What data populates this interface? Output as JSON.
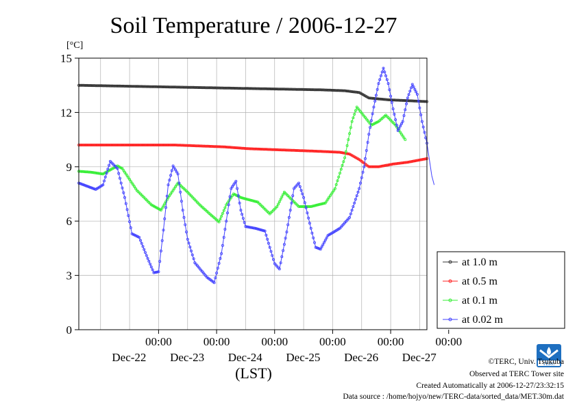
{
  "chart_data": {
    "type": "line",
    "title": "Soil Temperature / 2006-12-27",
    "ylabel": "[°C]",
    "xlabel": "(LST)",
    "ylim": [
      0,
      15
    ],
    "yticks": [
      0,
      3,
      6,
      9,
      12,
      15
    ],
    "grid": true,
    "legend_position": "right-bottom",
    "x_range_hours": [
      0,
      144
    ],
    "x_ticks": [
      {
        "hour": 33,
        "time": "00:00",
        "date": "Dec-22"
      },
      {
        "hour": 57,
        "time": "00:00",
        "date": "Dec-23"
      },
      {
        "hour": 81,
        "time": "00:00",
        "date": "Dec-24"
      },
      {
        "hour": 105,
        "time": "00:00",
        "date": "Dec-25"
      },
      {
        "hour": 129,
        "time": "00:00",
        "date": "Dec-26"
      },
      {
        "hour": 153,
        "time": "00:00",
        "date": "Dec-27"
      }
    ],
    "series": [
      {
        "name": "at 1.0 m",
        "color": "#333333",
        "points": [
          [
            0,
            13.5
          ],
          [
            20,
            13.45
          ],
          [
            40,
            13.4
          ],
          [
            60,
            13.35
          ],
          [
            80,
            13.3
          ],
          [
            100,
            13.25
          ],
          [
            110,
            13.2
          ],
          [
            116,
            13.1
          ],
          [
            120,
            12.8
          ],
          [
            128,
            12.7
          ],
          [
            144,
            12.6
          ]
        ]
      },
      {
        "name": "at 0.5 m",
        "color": "#ff2020",
        "points": [
          [
            0,
            10.2
          ],
          [
            20,
            10.2
          ],
          [
            40,
            10.2
          ],
          [
            50,
            10.15
          ],
          [
            60,
            10.1
          ],
          [
            70,
            10.0
          ],
          [
            80,
            9.95
          ],
          [
            90,
            9.9
          ],
          [
            100,
            9.85
          ],
          [
            108,
            9.8
          ],
          [
            112,
            9.7
          ],
          [
            116,
            9.4
          ],
          [
            120,
            9.0
          ],
          [
            124,
            9.0
          ],
          [
            130,
            9.15
          ],
          [
            136,
            9.25
          ],
          [
            144,
            9.45
          ]
        ]
      },
      {
        "name": "at 0.1 m",
        "color": "#33ee33",
        "points": [
          [
            0,
            8.75
          ],
          [
            5,
            8.7
          ],
          [
            10,
            8.6
          ],
          [
            12,
            8.75
          ],
          [
            16,
            9.05
          ],
          [
            18,
            8.9
          ],
          [
            24,
            7.7
          ],
          [
            30,
            6.9
          ],
          [
            34,
            6.6
          ],
          [
            37,
            7.3
          ],
          [
            41,
            8.1
          ],
          [
            45,
            7.6
          ],
          [
            50,
            6.9
          ],
          [
            55,
            6.3
          ],
          [
            58,
            5.95
          ],
          [
            61,
            6.9
          ],
          [
            64,
            7.5
          ],
          [
            67,
            7.3
          ],
          [
            74,
            7.05
          ],
          [
            79,
            6.4
          ],
          [
            82,
            6.8
          ],
          [
            85,
            7.6
          ],
          [
            88,
            7.2
          ],
          [
            91,
            6.8
          ],
          [
            96,
            6.8
          ],
          [
            102,
            7.0
          ],
          [
            106,
            7.8
          ],
          [
            110,
            9.5
          ],
          [
            113,
            11.5
          ],
          [
            115,
            12.3
          ],
          [
            118,
            11.8
          ],
          [
            121,
            11.3
          ],
          [
            124,
            11.5
          ],
          [
            127,
            11.85
          ],
          [
            131,
            11.3
          ],
          [
            135,
            10.5
          ]
        ]
      },
      {
        "name": "at 0.02 m",
        "color": "#4040ff",
        "points": [
          [
            0,
            8.1
          ],
          [
            4,
            7.9
          ],
          [
            7,
            7.75
          ],
          [
            10,
            8.0
          ],
          [
            13,
            9.3
          ],
          [
            16,
            8.9
          ],
          [
            19,
            7.3
          ],
          [
            22,
            5.3
          ],
          [
            25,
            5.1
          ],
          [
            28,
            4.1
          ],
          [
            31,
            3.15
          ],
          [
            33,
            3.2
          ],
          [
            35,
            5.5
          ],
          [
            37,
            8.0
          ],
          [
            39,
            9.05
          ],
          [
            41,
            8.6
          ],
          [
            43,
            6.6
          ],
          [
            45,
            5.0
          ],
          [
            48,
            3.7
          ],
          [
            53,
            2.9
          ],
          [
            56,
            2.6
          ],
          [
            59,
            4.2
          ],
          [
            61,
            6.0
          ],
          [
            63,
            7.8
          ],
          [
            65,
            8.2
          ],
          [
            67,
            6.6
          ],
          [
            69,
            5.7
          ],
          [
            73,
            5.6
          ],
          [
            77,
            5.45
          ],
          [
            81,
            3.65
          ],
          [
            83,
            3.35
          ],
          [
            86,
            5.4
          ],
          [
            89,
            7.8
          ],
          [
            91,
            8.1
          ],
          [
            93,
            7.3
          ],
          [
            96,
            5.6
          ],
          [
            98,
            4.55
          ],
          [
            100,
            4.45
          ],
          [
            103,
            5.2
          ],
          [
            108,
            5.6
          ],
          [
            112,
            6.2
          ],
          [
            116,
            7.8
          ],
          [
            118,
            9.0
          ],
          [
            120,
            10.8
          ],
          [
            122,
            12.3
          ],
          [
            124,
            13.6
          ],
          [
            126,
            14.45
          ],
          [
            128,
            13.6
          ],
          [
            130,
            12.2
          ],
          [
            132,
            11.0
          ],
          [
            134,
            11.5
          ],
          [
            136,
            12.8
          ],
          [
            138,
            13.55
          ],
          [
            140,
            13.0
          ],
          [
            142,
            11.5
          ],
          [
            144,
            10.3
          ],
          [
            146,
            8.5
          ],
          [
            147,
            8.0
          ]
        ]
      }
    ]
  },
  "credits": {
    "copyright": "©TERC, Univ. Tsukuba",
    "observed": "Observed at TERC Tower site",
    "created": "Created Automatically at 2006-12-27/23:32:15",
    "source": "Data source : /home/hojyo/new/TERC-data/sorted_data/MET.30m.dat"
  },
  "logo": {
    "text": "TERC",
    "color": "#1e6fc0"
  }
}
